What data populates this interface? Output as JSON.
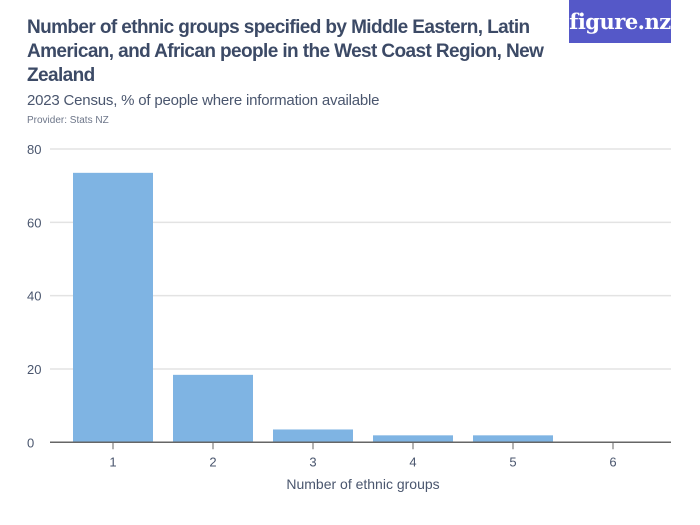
{
  "logo": "figure.nz",
  "chart_data": {
    "type": "bar",
    "title": "Number of ethnic groups specified by Middle Eastern, Latin American, and African people in the West Coast Region, New Zealand",
    "subtitle": "2023 Census, % of people where information available",
    "provider": "Provider: Stats NZ",
    "xlabel": "Number of ethnic groups",
    "ylabel": "",
    "categories": [
      "1",
      "2",
      "3",
      "4",
      "5",
      "6"
    ],
    "values": [
      73.5,
      18.4,
      3.5,
      1.9,
      1.9,
      0
    ],
    "ylim": [
      0,
      80
    ],
    "yticks": [
      0,
      20,
      40,
      60,
      80
    ],
    "grid": true,
    "bar_color": "#7fb4e3"
  }
}
